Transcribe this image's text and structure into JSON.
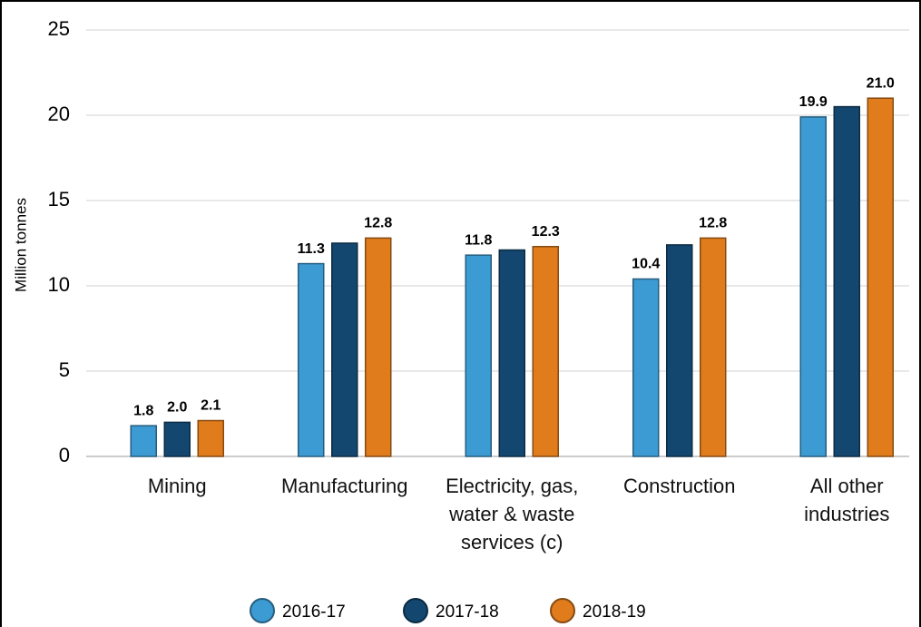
{
  "chart_data": {
    "type": "bar",
    "y_label": "Million tonnes",
    "categories": [
      "Mining",
      "Manufacturing",
      "Electricity, gas, water & waste services (c)",
      "Construction",
      "All other industries"
    ],
    "series": [
      {
        "name": "2016-17",
        "color": "#3d9bd3",
        "values": [
          1.8,
          11.3,
          11.8,
          10.4,
          19.9
        ],
        "value_labels": [
          "1.8",
          "11.3",
          "11.8",
          "10.4",
          "19.9"
        ]
      },
      {
        "name": "2017-18",
        "color": "#13476f",
        "values": [
          2.0,
          12.5,
          12.1,
          12.4,
          20.5
        ],
        "value_labels": [
          "2.0",
          null,
          null,
          null,
          null
        ]
      },
      {
        "name": "2018-19",
        "color": "#e07c1c",
        "values": [
          2.1,
          12.8,
          12.3,
          12.8,
          21.0
        ],
        "value_labels": [
          "2.1",
          "12.8",
          "12.3",
          "12.8",
          "21.0"
        ]
      }
    ],
    "ylim": [
      0,
      25
    ],
    "yticks": [
      0,
      5,
      10,
      15,
      20,
      25
    ],
    "grid": true,
    "legend": "bottom"
  }
}
